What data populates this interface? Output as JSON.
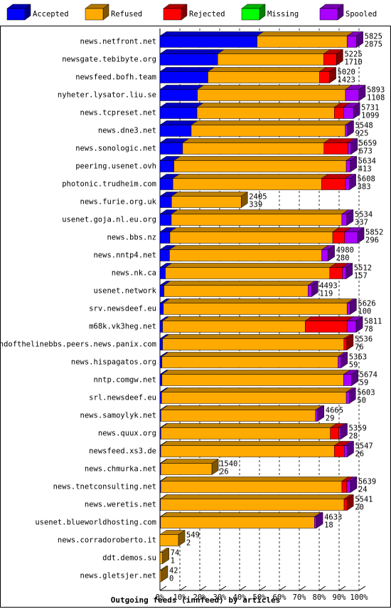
{
  "chart_data": {
    "type": "bar",
    "orientation": "horizontal",
    "stacked": true,
    "title": "Outgoing feeds (innfeed) by articles",
    "categories": [
      "news.netfront.net",
      "newsgate.tebibyte.org",
      "newsfeed.bofh.team",
      "nyheter.lysator.liu.se",
      "news.tcpreset.net",
      "news.dne3.net",
      "news.sonologic.net",
      "peering.usenet.ovh",
      "photonic.trudheim.com",
      "news.furie.org.uk",
      "usenet.goja.nl.eu.org",
      "news.bbs.nz",
      "news.nntp4.net",
      "news.nk.ca",
      "usenet.network",
      "srv.newsdeef.eu",
      "m68k.vk3heg.net",
      "endofthelinebbs.peers.news.panix.com",
      "news.hispagatos.org",
      "nntp.comgw.net",
      "srl.newsdeef.eu",
      "news.samoylyk.net",
      "news.quux.org",
      "newsfeed.xs3.de",
      "news.chmurka.net",
      "news.tnetconsulting.net",
      "news.weretis.net",
      "usenet.blueworldhosting.com",
      "news.corradoroberto.it",
      "ddt.demos.su",
      "news.gletsjer.net"
    ],
    "total_articles": [
      5825,
      5225,
      5020,
      5893,
      5731,
      5548,
      5659,
      5634,
      5608,
      2405,
      5534,
      5852,
      4980,
      5512,
      4493,
      5626,
      5811,
      5536,
      5363,
      5674,
      5603,
      4665,
      5359,
      5547,
      1540,
      5639,
      5541,
      4633,
      549,
      74,
      42
    ],
    "accepted_articles": [
      2875,
      1710,
      1423,
      1108,
      1099,
      925,
      673,
      413,
      383,
      339,
      337,
      296,
      280,
      157,
      119,
      100,
      78,
      76,
      59,
      59,
      50,
      29,
      28,
      26,
      26,
      24,
      20,
      18,
      2,
      1,
      0
    ],
    "series": [
      {
        "name": "Accepted",
        "color": "#0000ff",
        "values": [
          48.8,
          29.0,
          24.1,
          18.8,
          18.6,
          15.7,
          11.4,
          7.0,
          6.5,
          5.8,
          5.7,
          5.0,
          4.8,
          2.7,
          2.0,
          1.7,
          1.3,
          1.3,
          1.0,
          1.0,
          0.8,
          0.5,
          0.5,
          0.4,
          0.4,
          0.4,
          0.3,
          0.3,
          0,
          0,
          0
        ]
      },
      {
        "name": "Refused",
        "color": "#ffaa00",
        "values": [
          45.2,
          53.3,
          56.1,
          74.4,
          69,
          77.4,
          71,
          86.6,
          74.7,
          35,
          85.7,
          81.8,
          76.5,
          82.6,
          72.4,
          92.3,
          71.7,
          91.1,
          88.5,
          91.3,
          92.8,
          77.7,
          85.1,
          87.2,
          25.7,
          91,
          92.2,
          77.3,
          9.3,
          1.3,
          0.7
        ]
      },
      {
        "name": "Rejected",
        "color": "#ff0000",
        "values": [
          0,
          6.4,
          5,
          0,
          4.6,
          0,
          12.1,
          0,
          12,
          0,
          0,
          6,
          0,
          6.4,
          0,
          0,
          21,
          1.5,
          0,
          0,
          0,
          0,
          4.3,
          5,
          0,
          2.5,
          1.5,
          0,
          0,
          0,
          0
        ]
      },
      {
        "name": "Missing",
        "color": "#00ff00",
        "values": [
          0,
          0,
          0,
          0,
          0,
          0,
          0,
          0,
          0,
          0,
          0,
          0,
          0,
          0,
          0,
          0,
          0,
          0,
          0,
          0,
          0,
          0,
          0,
          0,
          0,
          0,
          0,
          0,
          0,
          0,
          0
        ]
      },
      {
        "name": "Spooled",
        "color": "#aa00ff",
        "values": [
          4.8,
          0,
          0,
          6.8,
          5,
          1,
          1.5,
          2,
          2,
          0,
          2.5,
          6.5,
          3.2,
          1.8,
          1.8,
          1.5,
          4.6,
          0,
          1.5,
          4,
          1.5,
          1,
          1,
          1.5,
          0,
          1.8,
          0,
          1,
          0,
          0,
          0
        ]
      }
    ],
    "xlim": [
      0,
      100
    ],
    "xticks": [
      {
        "value": 0,
        "label": "0%"
      },
      {
        "value": 10,
        "label": "10%"
      },
      {
        "value": 20,
        "label": "20%"
      },
      {
        "value": 30,
        "label": "30%"
      },
      {
        "value": 40,
        "label": "40%"
      },
      {
        "value": 50,
        "label": "50%"
      },
      {
        "value": 60,
        "label": "60%"
      },
      {
        "value": 70,
        "label": "70%"
      },
      {
        "value": 80,
        "label": "80%"
      },
      {
        "value": 90,
        "label": "90%"
      },
      {
        "value": 100,
        "label": "100%"
      }
    ],
    "grid": true,
    "legend": "top"
  }
}
